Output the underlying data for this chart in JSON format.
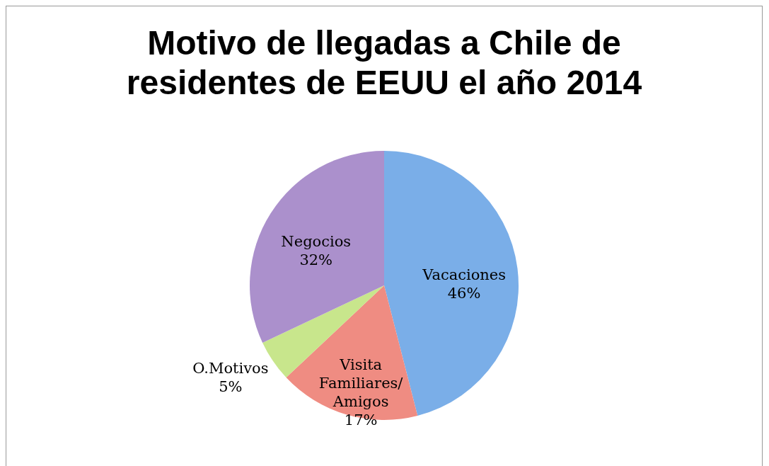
{
  "chart_data": {
    "type": "pie",
    "title": "Motivo de llegadas a Chile de residentes de EEUU el año 2014",
    "categories": [
      "Vacaciones",
      "Visita Familiares/ Amigos",
      "O.Motivos",
      "Negocios"
    ],
    "values": [
      46,
      17,
      5,
      32
    ],
    "colors": [
      "#7aaee8",
      "#ef8c82",
      "#c8e68c",
      "#ab90cc"
    ],
    "value_labels": [
      "46%",
      "17%",
      "5%",
      "32%"
    ],
    "legend": false
  }
}
